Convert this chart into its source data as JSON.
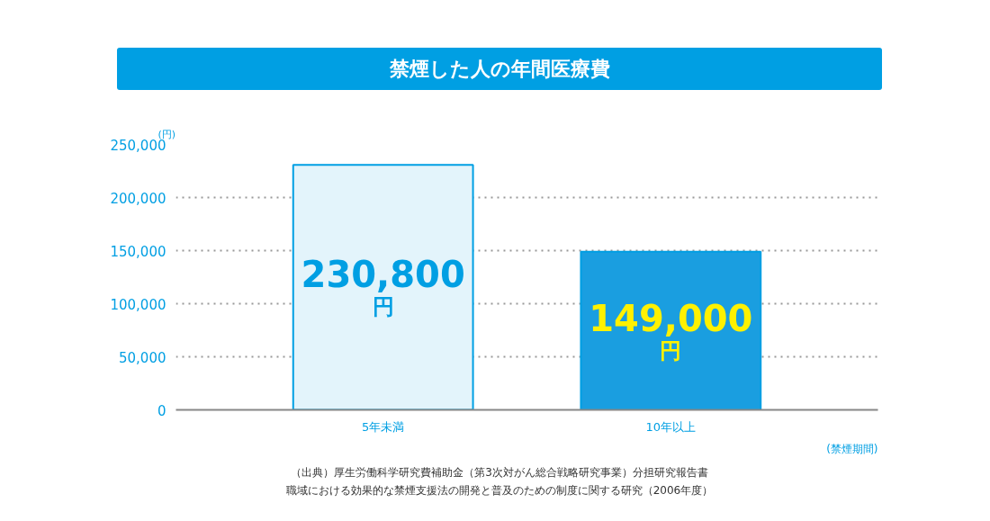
{
  "chart_data": {
    "type": "bar",
    "title": "禁煙した人の年間医療費",
    "categories": [
      "5年未満",
      "10年以上"
    ],
    "values": [
      230800,
      149000
    ],
    "colors": [
      "#e3f4fb",
      "#1a9ee0"
    ],
    "value_labels": [
      "230,800\n円",
      "149,000\n円"
    ],
    "ylim": [
      0,
      250000
    ],
    "yticks": [
      {
        "value": 0,
        "label": "0"
      },
      {
        "value": 50000,
        "label": "50,000"
      },
      {
        "value": 100000,
        "label": "100,000"
      },
      {
        "value": 150000,
        "label": "150,000"
      },
      {
        "value": 200000,
        "label": "200,000"
      },
      {
        "value": 250000,
        "label": "250,000"
      }
    ],
    "ylabel": "(円)",
    "xlabel": "(禁煙期間)",
    "grid": "y",
    "annotations": [
      "（出典）厚生労働科学研究費補助金（第3次対がん総合戦略研究事業）分担研究報告書",
      "職域における効果的な禁煙支援法の開発と普及のための制度に関する研究（2006年度）"
    ]
  }
}
